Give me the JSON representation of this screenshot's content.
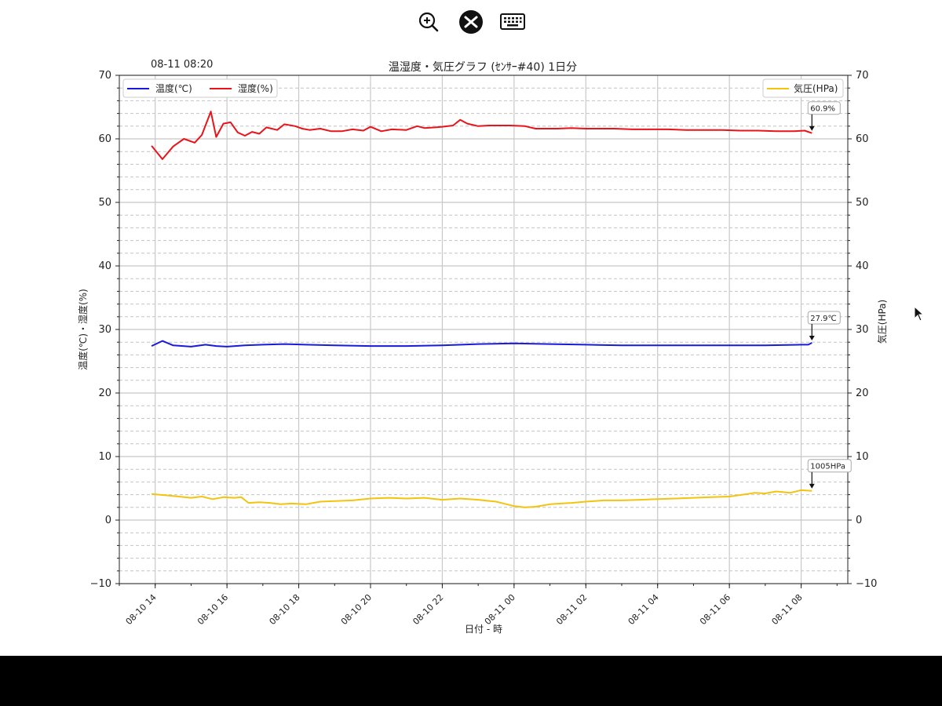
{
  "toolbar": {
    "icons": [
      "zoom-in-icon",
      "remote-desktop-icon",
      "keyboard-icon"
    ]
  },
  "chart_header": {
    "timestamp": "08-11 08:20",
    "title": "温湿度・気圧グラフ (ｾﾝｻｰ#40) 1日分"
  },
  "chart_data": {
    "type": "line",
    "title": "温湿度・気圧グラフ (ｾﾝｻｰ#40) 1日分",
    "xlabel": "日付 - 時",
    "ylabel_left": "温度(℃)・湿度(%)",
    "ylabel_right": "気圧(HPa)",
    "ylim": [
      -10,
      70
    ],
    "yticks": [
      -10,
      0,
      10,
      20,
      30,
      40,
      50,
      60,
      70
    ],
    "ytick_labels": [
      "−10",
      "0",
      "10",
      "20",
      "30",
      "40",
      "50",
      "60",
      "70"
    ],
    "x_range_hours": [
      13,
      33.3
    ],
    "xticks": [
      {
        "label": "08-10 14",
        "hour": 14
      },
      {
        "label": "08-10 16",
        "hour": 16
      },
      {
        "label": "08-10 18",
        "hour": 18
      },
      {
        "label": "08-10 20",
        "hour": 20
      },
      {
        "label": "08-10 22",
        "hour": 22
      },
      {
        "label": "08-11 00",
        "hour": 24
      },
      {
        "label": "08-11 02",
        "hour": 26
      },
      {
        "label": "08-11 04",
        "hour": 28
      },
      {
        "label": "08-11 06",
        "hour": 30
      },
      {
        "label": "08-11 08",
        "hour": 32
      }
    ],
    "grid": true,
    "legend_left_placement": "top-left",
    "legend_right_placement": "top-right",
    "series": [
      {
        "name": "湿度(%)",
        "axis": "left",
        "color": "#e8141a",
        "x": [
          13.9,
          14.2,
          14.5,
          14.8,
          15.1,
          15.3,
          15.55,
          15.7,
          15.9,
          16.1,
          16.3,
          16.5,
          16.7,
          16.9,
          17.1,
          17.4,
          17.6,
          17.9,
          18.1,
          18.3,
          18.6,
          18.9,
          19.2,
          19.5,
          19.8,
          20.0,
          20.3,
          20.6,
          21.0,
          21.3,
          21.5,
          21.8,
          22.0,
          22.3,
          22.5,
          22.7,
          23.0,
          23.3,
          23.6,
          23.9,
          24.3,
          24.6,
          24.9,
          25.2,
          25.6,
          26.0,
          26.4,
          26.8,
          27.3,
          27.8,
          28.3,
          28.8,
          29.3,
          29.8,
          30.3,
          30.8,
          31.3,
          31.8,
          32.1,
          32.3
        ],
        "values": [
          58.9,
          56.8,
          58.8,
          60.0,
          59.4,
          60.6,
          64.3,
          60.3,
          62.4,
          62.6,
          61.0,
          60.5,
          61.1,
          60.8,
          61.8,
          61.4,
          62.3,
          62.0,
          61.6,
          61.4,
          61.6,
          61.2,
          61.2,
          61.5,
          61.3,
          61.9,
          61.2,
          61.5,
          61.4,
          62.0,
          61.7,
          61.8,
          61.9,
          62.1,
          63.0,
          62.4,
          62.0,
          62.1,
          62.1,
          62.1,
          62.0,
          61.6,
          61.6,
          61.6,
          61.7,
          61.6,
          61.6,
          61.6,
          61.5,
          61.5,
          61.5,
          61.4,
          61.4,
          61.4,
          61.3,
          61.3,
          61.2,
          61.2,
          61.3,
          60.9
        ]
      },
      {
        "name": "温度(℃)",
        "axis": "left",
        "color": "#1a1adb",
        "x": [
          13.9,
          14.2,
          14.5,
          15.0,
          15.4,
          15.7,
          16.0,
          16.5,
          17.0,
          17.6,
          18.2,
          19.0,
          20.0,
          21.0,
          22.0,
          23.0,
          24.0,
          25.0,
          26.0,
          27.0,
          28.0,
          29.0,
          30.0,
          31.0,
          32.0,
          32.2,
          32.3
        ],
        "values": [
          27.4,
          28.2,
          27.5,
          27.3,
          27.6,
          27.4,
          27.3,
          27.5,
          27.6,
          27.7,
          27.6,
          27.5,
          27.4,
          27.4,
          27.5,
          27.7,
          27.8,
          27.7,
          27.6,
          27.5,
          27.5,
          27.5,
          27.5,
          27.5,
          27.6,
          27.6,
          27.9
        ]
      },
      {
        "name": "気圧(HPa)",
        "axis": "right",
        "color": "#f2c40c",
        "x": [
          13.9,
          14.5,
          15.0,
          15.3,
          15.6,
          15.9,
          16.2,
          16.4,
          16.6,
          16.9,
          17.2,
          17.5,
          17.8,
          18.2,
          18.6,
          19.0,
          19.5,
          20.0,
          20.5,
          21.0,
          21.5,
          22.0,
          22.5,
          23.0,
          23.5,
          24.0,
          24.3,
          24.6,
          24.8,
          25.0,
          25.3,
          25.6,
          26.0,
          26.5,
          27.0,
          27.5,
          28.0,
          28.5,
          29.0,
          29.5,
          30.0,
          30.5,
          30.7,
          31.0,
          31.3,
          31.5,
          31.7,
          32.0,
          32.3
        ],
        "values": [
          4.1,
          3.8,
          3.5,
          3.7,
          3.3,
          3.6,
          3.5,
          3.6,
          2.7,
          2.8,
          2.7,
          2.5,
          2.6,
          2.5,
          2.9,
          3.0,
          3.1,
          3.4,
          3.5,
          3.4,
          3.5,
          3.2,
          3.4,
          3.2,
          2.9,
          2.2,
          2.0,
          2.1,
          2.3,
          2.5,
          2.6,
          2.7,
          2.9,
          3.1,
          3.1,
          3.2,
          3.3,
          3.4,
          3.5,
          3.6,
          3.7,
          4.1,
          4.3,
          4.2,
          4.5,
          4.4,
          4.3,
          4.7,
          4.6
        ]
      }
    ],
    "annotations": [
      {
        "text": "60.9%",
        "series": "湿度(%)",
        "x": 32.3,
        "y": 60.9
      },
      {
        "text": "27.9℃",
        "series": "温度(℃)",
        "x": 32.3,
        "y": 27.9
      },
      {
        "text": "1005HPa",
        "series": "気圧(HPa)",
        "x": 32.3,
        "y": 4.6
      }
    ]
  }
}
